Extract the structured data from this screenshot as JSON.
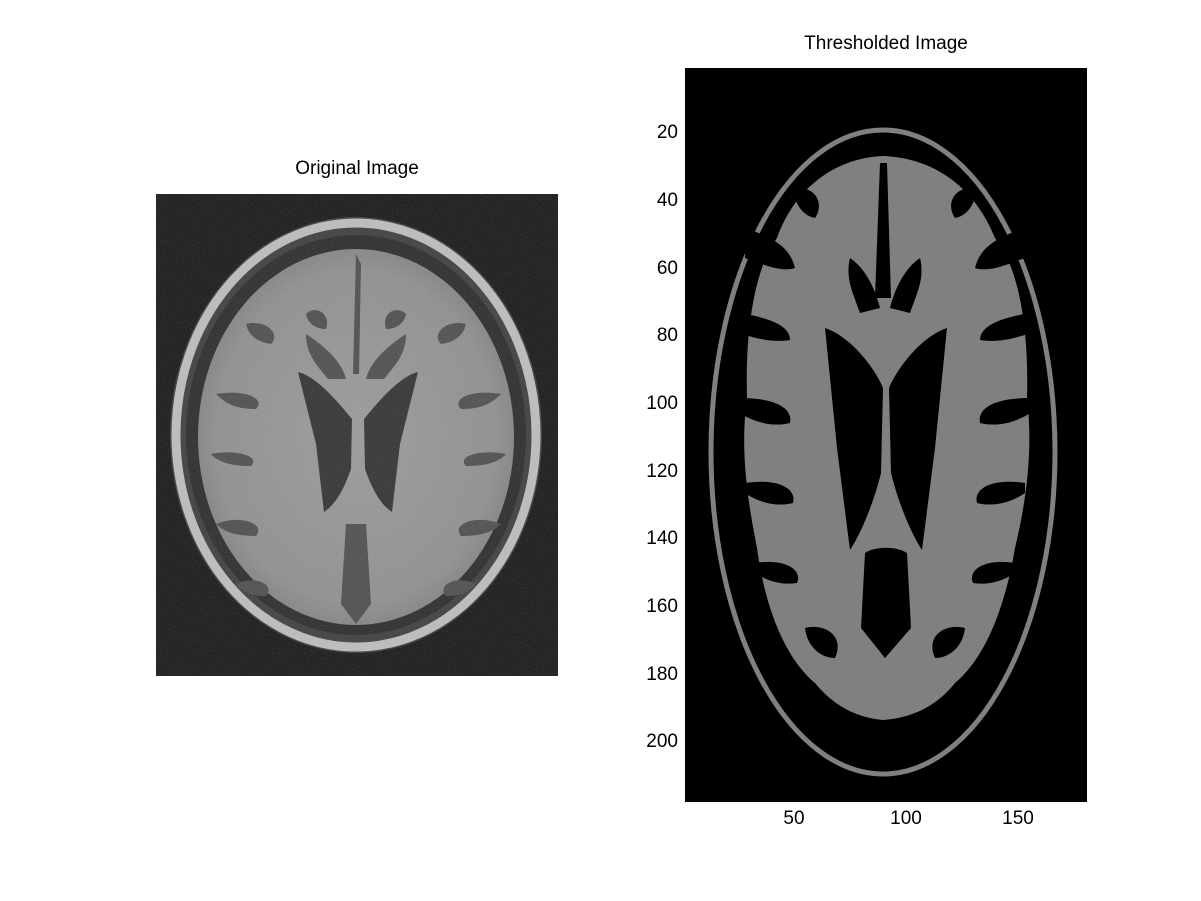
{
  "figure": {
    "left_panel": {
      "title": "Original Image",
      "image": "grayscale MRI brain axial slice"
    },
    "right_panel": {
      "title": "Thresholded Image",
      "image": "thresholded MRI brain slice (gray on black)",
      "y_axis": {
        "ticks": [
          "20",
          "40",
          "60",
          "80",
          "100",
          "120",
          "140",
          "160",
          "180",
          "200"
        ]
      },
      "x_axis": {
        "ticks": [
          "50",
          "100",
          "150"
        ]
      }
    }
  },
  "colors": {
    "background": "#ffffff",
    "image_black": "#000000",
    "tissue_gray": "#808080"
  }
}
